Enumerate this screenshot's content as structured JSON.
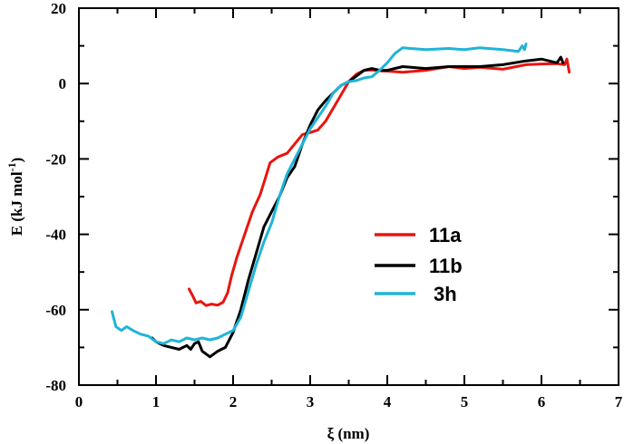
{
  "chart_data": {
    "type": "line",
    "title": "",
    "xlabel": "ξ (nm)",
    "ylabel_main": "E (kJ mol",
    "ylabel_sup": "-1",
    "ylabel_close": ")",
    "xlim": [
      0,
      7
    ],
    "ylim": [
      -80,
      20
    ],
    "xticks": [
      0,
      1,
      2,
      3,
      4,
      5,
      6,
      7
    ],
    "xtick_labels": [
      "0",
      "1",
      "2",
      "3",
      "4",
      "5",
      "6",
      "7"
    ],
    "yticks": [
      -80,
      -60,
      -40,
      -20,
      0,
      20
    ],
    "ytick_labels": [
      "-80",
      "-60",
      "-40",
      "-20",
      "0",
      "20"
    ],
    "grid": false,
    "legend_position": "center-right",
    "series": [
      {
        "name": "11a",
        "color": "#e8150e",
        "points": [
          [
            1.43,
            -54.5
          ],
          [
            1.48,
            -56.5
          ],
          [
            1.52,
            -58.2
          ],
          [
            1.58,
            -57.8
          ],
          [
            1.65,
            -58.9
          ],
          [
            1.72,
            -58.5
          ],
          [
            1.8,
            -58.8
          ],
          [
            1.87,
            -58.0
          ],
          [
            1.93,
            -55.5
          ],
          [
            1.98,
            -51.0
          ],
          [
            2.05,
            -46.0
          ],
          [
            2.15,
            -40.0
          ],
          [
            2.25,
            -34.0
          ],
          [
            2.35,
            -29.5
          ],
          [
            2.42,
            -25.0
          ],
          [
            2.48,
            -21.0
          ],
          [
            2.58,
            -19.5
          ],
          [
            2.7,
            -18.5
          ],
          [
            2.8,
            -16.0
          ],
          [
            2.9,
            -13.5
          ],
          [
            3.0,
            -13.0
          ],
          [
            3.1,
            -12.3
          ],
          [
            3.2,
            -10.0
          ],
          [
            3.3,
            -6.5
          ],
          [
            3.4,
            -3.0
          ],
          [
            3.5,
            0.5
          ],
          [
            3.6,
            2.5
          ],
          [
            3.7,
            3.5
          ],
          [
            3.8,
            3.6
          ],
          [
            3.9,
            3.4
          ],
          [
            4.0,
            3.3
          ],
          [
            4.2,
            3.0
          ],
          [
            4.5,
            3.5
          ],
          [
            4.8,
            4.5
          ],
          [
            5.0,
            4.0
          ],
          [
            5.2,
            4.3
          ],
          [
            5.5,
            3.8
          ],
          [
            5.8,
            5.0
          ],
          [
            6.0,
            5.2
          ],
          [
            6.2,
            5.3
          ],
          [
            6.3,
            5.0
          ],
          [
            6.33,
            6.5
          ],
          [
            6.36,
            3.0
          ]
        ]
      },
      {
        "name": "11b",
        "color": "#000000",
        "points": [
          [
            0.95,
            -67.5
          ],
          [
            1.0,
            -68.5
          ],
          [
            1.1,
            -69.5
          ],
          [
            1.2,
            -70.0
          ],
          [
            1.3,
            -70.5
          ],
          [
            1.4,
            -69.5
          ],
          [
            1.45,
            -70.5
          ],
          [
            1.5,
            -69.0
          ],
          [
            1.55,
            -68.5
          ],
          [
            1.6,
            -71.0
          ],
          [
            1.7,
            -72.5
          ],
          [
            1.8,
            -71.0
          ],
          [
            1.9,
            -70.0
          ],
          [
            2.0,
            -66.0
          ],
          [
            2.1,
            -60.0
          ],
          [
            2.2,
            -52.0
          ],
          [
            2.3,
            -45.0
          ],
          [
            2.4,
            -38.0
          ],
          [
            2.5,
            -34.0
          ],
          [
            2.6,
            -30.0
          ],
          [
            2.7,
            -25.0
          ],
          [
            2.8,
            -22.0
          ],
          [
            2.9,
            -16.0
          ],
          [
            3.0,
            -11.0
          ],
          [
            3.1,
            -7.0
          ],
          [
            3.2,
            -4.5
          ],
          [
            3.3,
            -2.5
          ],
          [
            3.4,
            -0.5
          ],
          [
            3.5,
            0.5
          ],
          [
            3.6,
            2.0
          ],
          [
            3.7,
            3.5
          ],
          [
            3.8,
            4.0
          ],
          [
            3.9,
            3.5
          ],
          [
            4.0,
            3.5
          ],
          [
            4.2,
            4.5
          ],
          [
            4.5,
            4.0
          ],
          [
            4.8,
            4.5
          ],
          [
            5.0,
            4.5
          ],
          [
            5.2,
            4.5
          ],
          [
            5.5,
            5.0
          ],
          [
            5.8,
            6.0
          ],
          [
            6.0,
            6.5
          ],
          [
            6.2,
            5.5
          ],
          [
            6.25,
            7.0
          ],
          [
            6.28,
            5.5
          ]
        ]
      },
      {
        "name": "3h",
        "color": "#1fb4d8",
        "points": [
          [
            0.43,
            -60.5
          ],
          [
            0.48,
            -64.5
          ],
          [
            0.55,
            -65.5
          ],
          [
            0.62,
            -64.5
          ],
          [
            0.7,
            -65.5
          ],
          [
            0.8,
            -66.5
          ],
          [
            0.9,
            -67.0
          ],
          [
            1.0,
            -68.5
          ],
          [
            1.1,
            -69.0
          ],
          [
            1.2,
            -68.0
          ],
          [
            1.3,
            -68.5
          ],
          [
            1.4,
            -67.5
          ],
          [
            1.5,
            -68.0
          ],
          [
            1.6,
            -67.5
          ],
          [
            1.7,
            -68.0
          ],
          [
            1.8,
            -67.5
          ],
          [
            1.9,
            -66.5
          ],
          [
            2.0,
            -65.5
          ],
          [
            2.1,
            -62.0
          ],
          [
            2.2,
            -55.0
          ],
          [
            2.3,
            -48.0
          ],
          [
            2.4,
            -42.0
          ],
          [
            2.5,
            -37.0
          ],
          [
            2.6,
            -30.0
          ],
          [
            2.7,
            -24.0
          ],
          [
            2.8,
            -20.0
          ],
          [
            2.9,
            -16.0
          ],
          [
            3.0,
            -12.0
          ],
          [
            3.1,
            -9.0
          ],
          [
            3.2,
            -6.0
          ],
          [
            3.3,
            -2.5
          ],
          [
            3.4,
            -0.5
          ],
          [
            3.5,
            0.5
          ],
          [
            3.6,
            0.8
          ],
          [
            3.7,
            1.5
          ],
          [
            3.8,
            1.8
          ],
          [
            3.9,
            3.5
          ],
          [
            4.0,
            5.5
          ],
          [
            4.1,
            8.0
          ],
          [
            4.2,
            9.5
          ],
          [
            4.3,
            9.3
          ],
          [
            4.5,
            9.0
          ],
          [
            4.8,
            9.3
          ],
          [
            5.0,
            9.0
          ],
          [
            5.2,
            9.5
          ],
          [
            5.5,
            9.0
          ],
          [
            5.7,
            8.5
          ],
          [
            5.75,
            10.0
          ],
          [
            5.78,
            9.0
          ],
          [
            5.8,
            10.5
          ]
        ]
      }
    ]
  }
}
